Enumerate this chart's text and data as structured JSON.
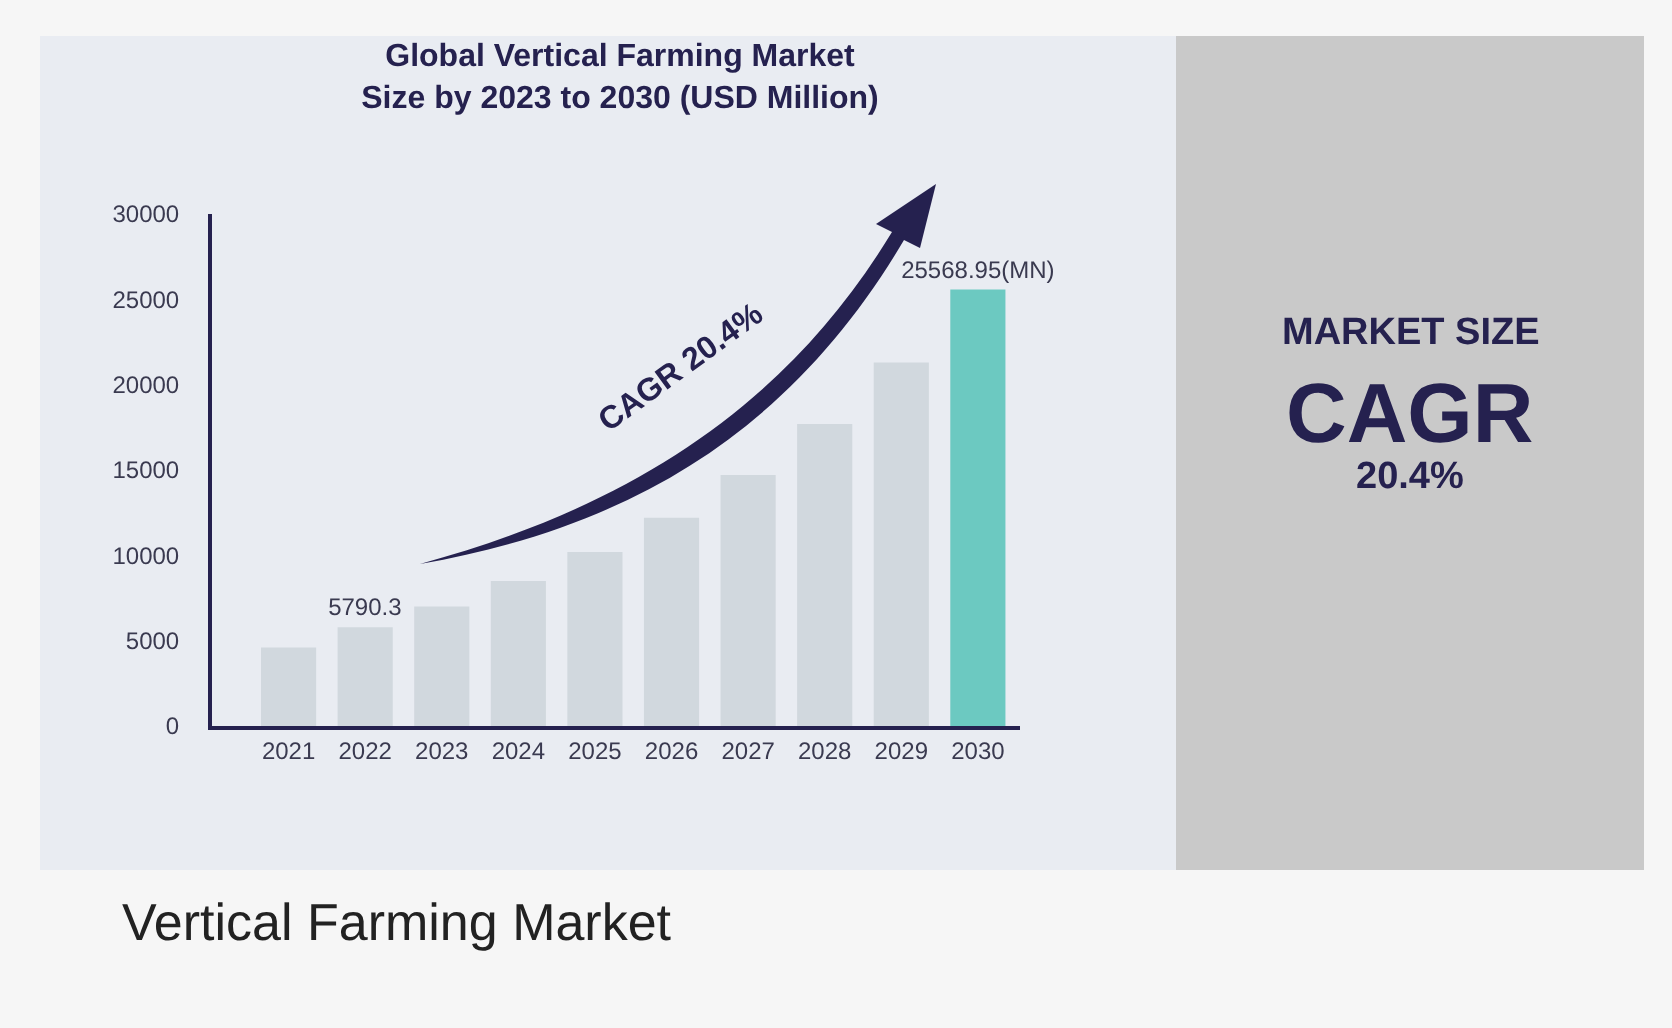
{
  "chart_data": {
    "type": "bar",
    "title": "Global Vertical Farming Market Size by 2023 to 2030 (USD Million)",
    "categories": [
      "2021",
      "2022",
      "2023",
      "2024",
      "2025",
      "2026",
      "2027",
      "2028",
      "2029",
      "2030"
    ],
    "values": [
      4600,
      5790.3,
      7000,
      8500,
      10200,
      12200,
      14700,
      17700,
      21300,
      25568.95
    ],
    "colors": [
      "#d1d8de",
      "#d1d8de",
      "#d1d8de",
      "#d1d8de",
      "#d1d8de",
      "#d1d8de",
      "#d1d8de",
      "#d1d8de",
      "#d1d8de",
      "#6cc9c1"
    ],
    "value_labels": [
      null,
      "5790.3",
      null,
      null,
      null,
      null,
      null,
      null,
      null,
      "25568.95(MN)"
    ],
    "ylim": [
      0,
      30000
    ],
    "yticks": [
      0,
      5000,
      10000,
      15000,
      20000,
      25000,
      30000
    ],
    "grid": false,
    "legend": false,
    "annotations": [
      "CAGR 20.4%",
      "MARKET SIZE",
      "CAGR",
      "20.4%",
      "Vertical Farming Market"
    ]
  }
}
